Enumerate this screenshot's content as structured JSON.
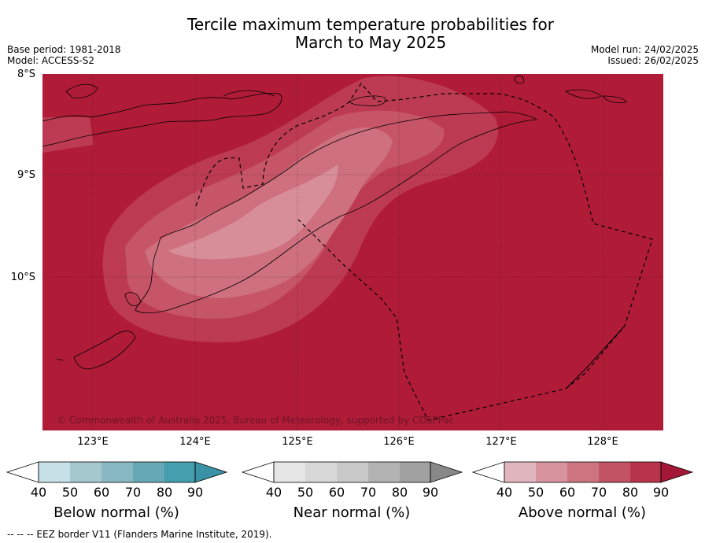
{
  "title_line1": "Tercile maximum temperature probabilities for",
  "title_line2": "March to May 2025",
  "meta_left": {
    "base_period": "Base period: 1981-2018",
    "model": "Model: ACCESS-S2"
  },
  "meta_right": {
    "model_run": "Model run: 24/02/2025",
    "issued": "Issued: 26/02/2025"
  },
  "map": {
    "lat_labels": [
      "8°S",
      "9°S",
      "10°S"
    ],
    "lon_labels": [
      "123°E",
      "124°E",
      "125°E",
      "126°E",
      "127°E",
      "128°E"
    ],
    "copyright": "© Commonwealth of Australia 2025, Bureau of Meteorology, supported by COSPPac",
    "base_color": "#b01c38"
  },
  "colorbars": [
    {
      "title": "Below normal (%)",
      "ticks": [
        "40",
        "50",
        "60",
        "70",
        "80",
        "90"
      ],
      "colors": [
        "#c6e1e7",
        "#a5c8ce",
        "#88b8c2",
        "#67a8b6",
        "#459ead",
        "#3a92a6"
      ]
    },
    {
      "title": "Near normal (%)",
      "ticks": [
        "40",
        "50",
        "60",
        "70",
        "80",
        "90"
      ],
      "colors": [
        "#e6e6e6",
        "#d8d8d8",
        "#c9c9c9",
        "#b3b3b3",
        "#a1a1a1",
        "#888888"
      ]
    },
    {
      "title": "Above normal (%)",
      "ticks": [
        "40",
        "50",
        "60",
        "70",
        "80",
        "90"
      ],
      "colors": [
        "#e1b6bf",
        "#d7949f",
        "#cc7580",
        "#c25364",
        "#b7344b",
        "#a41736"
      ]
    }
  ],
  "footer": "--  --  -- EEZ border V11 (Flanders Marine Institute, 2019)."
}
